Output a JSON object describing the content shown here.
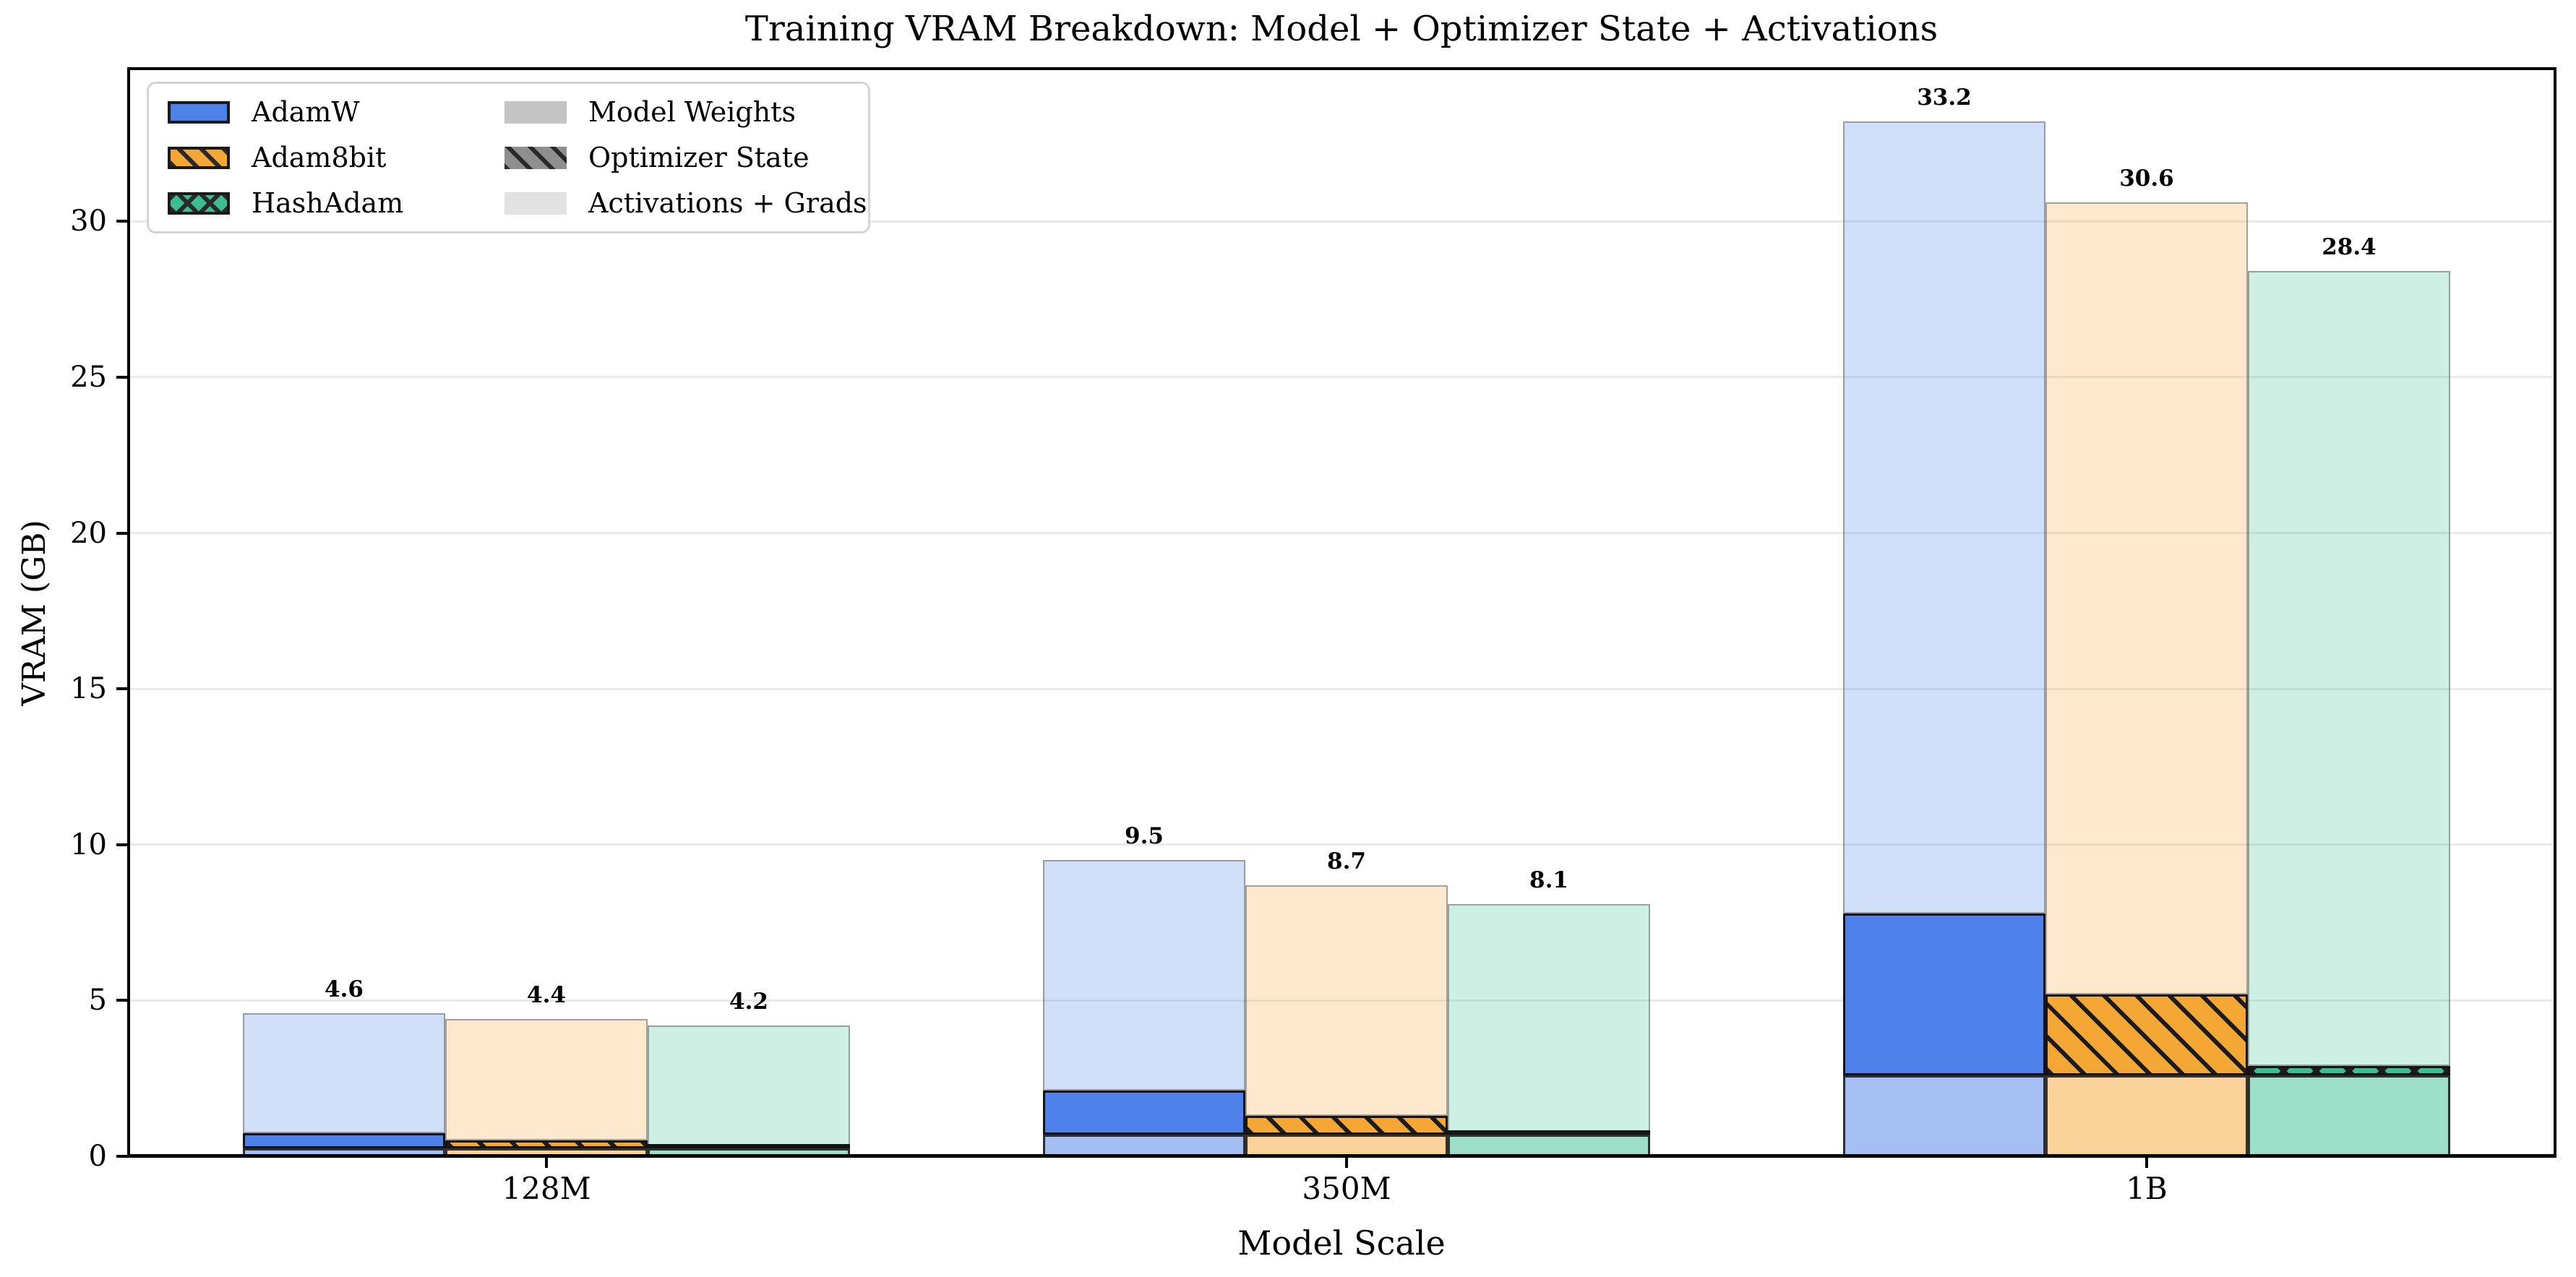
{
  "chart_data": {
    "type": "bar",
    "variant": "grouped-stacked",
    "title": "Training VRAM Breakdown: Model + Optimizer State + Activations",
    "xlabel": "Model Scale",
    "ylabel": "VRAM (GB)",
    "categories": [
      "128M",
      "350M",
      "1B"
    ],
    "yticks": [
      0,
      5,
      10,
      15,
      20,
      25,
      30
    ],
    "ylim": [
      0,
      34.9
    ],
    "grid": {
      "axis": "y",
      "color": "#e9e9e9"
    },
    "legend_position": "upper left",
    "stack_order": [
      "model_weights",
      "optimizer_state",
      "activations_grads"
    ],
    "series": [
      {
        "name": "AdamW",
        "color": "#4d80e8",
        "hatch": "none",
        "model_weights": [
          0.25,
          0.7,
          2.6
        ],
        "optimizer_state": [
          0.5,
          1.4,
          5.2
        ],
        "activations_grads": [
          3.85,
          7.4,
          25.4
        ],
        "totals": [
          4.6,
          9.5,
          33.2
        ]
      },
      {
        "name": "Adam8bit",
        "color": "#f5a736",
        "hatch": "/",
        "model_weights": [
          0.25,
          0.7,
          2.6
        ],
        "optimizer_state": [
          0.25,
          0.6,
          2.6
        ],
        "activations_grads": [
          3.9,
          7.4,
          25.4
        ],
        "totals": [
          4.4,
          8.7,
          30.6
        ]
      },
      {
        "name": "HashAdam",
        "color": "#3cbe93",
        "hatch": "x",
        "model_weights": [
          0.25,
          0.7,
          2.6
        ],
        "optimizer_state": [
          0.05,
          0.1,
          0.3
        ],
        "activations_grads": [
          3.9,
          7.3,
          25.5
        ],
        "totals": [
          4.2,
          8.1,
          28.4
        ]
      }
    ],
    "component_legend": [
      {
        "label": "Model Weights",
        "color": "#c4c4c4",
        "hatch": "none"
      },
      {
        "label": "Optimizer State",
        "color": "#8f8f8f",
        "hatch": "/"
      },
      {
        "label": "Activations + Grads",
        "color": "#e2e2e2",
        "hatch": "none"
      }
    ],
    "style": {
      "weights_alpha": 0.5,
      "activations_alpha": 0.25,
      "hatch_color": "#1c1c1c",
      "segment_edge_color": "#141414",
      "light_edge_color": "rgba(110,110,110,0.6)",
      "grid_color": "#e9e9e9",
      "spine_color": "#000000",
      "legend_border_color": "#d4d4d4",
      "background": "#ffffff",
      "text_color": "#000000"
    }
  }
}
